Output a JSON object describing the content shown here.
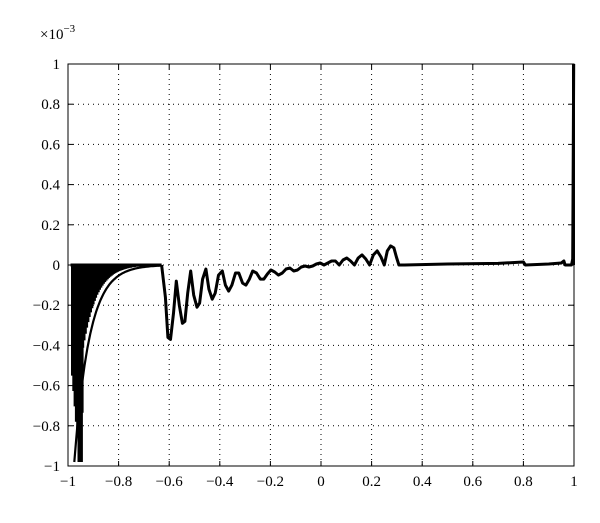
{
  "chart_data": {
    "type": "line",
    "title": "",
    "xlabel": "",
    "ylabel": "",
    "y_scale_label": "×10",
    "y_scale_exponent": "−3",
    "xlim": [
      -1,
      1
    ],
    "ylim": [
      -1,
      1
    ],
    "grid": true,
    "x_ticks": [
      -1,
      -0.8,
      -0.6,
      -0.4,
      -0.2,
      0,
      0.2,
      0.4,
      0.6,
      0.8,
      1
    ],
    "x_tick_labels": [
      "−1",
      "−0.8",
      "−0.6",
      "−0.4",
      "−0.2",
      "0",
      "0.2",
      "0.4",
      "0.6",
      "0.8",
      "1"
    ],
    "y_ticks": [
      -1,
      -0.8,
      -0.6,
      -0.4,
      -0.2,
      0,
      0.2,
      0.4,
      0.6,
      0.8,
      1
    ],
    "y_tick_labels": [
      "−1",
      "−0.8",
      "−0.6",
      "−0.4",
      "−0.2",
      "0",
      "0.2",
      "0.4",
      "0.6",
      "0.8",
      "1"
    ],
    "series": [
      {
        "color": "#000000",
        "points": [
          [
            -0.63,
            0.0
          ],
          [
            -0.615,
            -0.16
          ],
          [
            -0.605,
            -0.36
          ],
          [
            -0.595,
            -0.37
          ],
          [
            -0.583,
            -0.24
          ],
          [
            -0.572,
            -0.08
          ],
          [
            -0.56,
            -0.2
          ],
          [
            -0.548,
            -0.29
          ],
          [
            -0.538,
            -0.28
          ],
          [
            -0.527,
            -0.14
          ],
          [
            -0.515,
            -0.03
          ],
          [
            -0.503,
            -0.15
          ],
          [
            -0.49,
            -0.21
          ],
          [
            -0.48,
            -0.19
          ],
          [
            -0.468,
            -0.07
          ],
          [
            -0.455,
            -0.02
          ],
          [
            -0.443,
            -0.12
          ],
          [
            -0.43,
            -0.17
          ],
          [
            -0.418,
            -0.14
          ],
          [
            -0.405,
            -0.05
          ],
          [
            -0.39,
            -0.03
          ],
          [
            -0.378,
            -0.1
          ],
          [
            -0.365,
            -0.13
          ],
          [
            -0.352,
            -0.1
          ],
          [
            -0.338,
            -0.04
          ],
          [
            -0.325,
            -0.04
          ],
          [
            -0.31,
            -0.09
          ],
          [
            -0.297,
            -0.1
          ],
          [
            -0.283,
            -0.07
          ],
          [
            -0.27,
            -0.03
          ],
          [
            -0.255,
            -0.04
          ],
          [
            -0.24,
            -0.07
          ],
          [
            -0.226,
            -0.07
          ],
          [
            -0.212,
            -0.045
          ],
          [
            -0.198,
            -0.025
          ],
          [
            -0.183,
            -0.035
          ],
          [
            -0.168,
            -0.05
          ],
          [
            -0.153,
            -0.04
          ],
          [
            -0.138,
            -0.02
          ],
          [
            -0.123,
            -0.015
          ],
          [
            -0.108,
            -0.03
          ],
          [
            -0.093,
            -0.025
          ],
          [
            -0.078,
            -0.01
          ],
          [
            -0.063,
            -0.005
          ],
          [
            -0.048,
            -0.01
          ],
          [
            -0.033,
            -0.005
          ],
          [
            -0.018,
            0.005
          ],
          [
            -0.003,
            0.01
          ],
          [
            0.012,
            0.0
          ],
          [
            0.027,
            0.01
          ],
          [
            0.042,
            0.02
          ],
          [
            0.057,
            0.02
          ],
          [
            0.072,
            0.0
          ],
          [
            0.087,
            0.025
          ],
          [
            0.102,
            0.035
          ],
          [
            0.117,
            0.02
          ],
          [
            0.132,
            0.0
          ],
          [
            0.147,
            0.035
          ],
          [
            0.162,
            0.05
          ],
          [
            0.177,
            0.03
          ],
          [
            0.192,
            0.0
          ],
          [
            0.207,
            0.05
          ],
          [
            0.222,
            0.07
          ],
          [
            0.237,
            0.04
          ],
          [
            0.25,
            0.0
          ],
          [
            0.262,
            0.07
          ],
          [
            0.275,
            0.095
          ],
          [
            0.288,
            0.085
          ],
          [
            0.298,
            0.04
          ],
          [
            0.308,
            0.0
          ],
          [
            0.33,
            0.0
          ],
          [
            0.5,
            0.005
          ],
          [
            0.7,
            0.008
          ],
          [
            0.8,
            0.015
          ],
          [
            0.808,
            0.0
          ],
          [
            0.9,
            0.005
          ],
          [
            0.95,
            0.01
          ],
          [
            0.96,
            0.02
          ],
          [
            0.965,
            0.0
          ],
          [
            0.99,
            0.0
          ],
          [
            0.995,
            0.03
          ],
          [
            0.997,
            0.5
          ],
          [
            0.999,
            1.0
          ]
        ]
      }
    ],
    "band_left": {
      "description_free": true,
      "x_range": [
        -0.98,
        -0.63
      ],
      "upper": 0.0
    }
  }
}
